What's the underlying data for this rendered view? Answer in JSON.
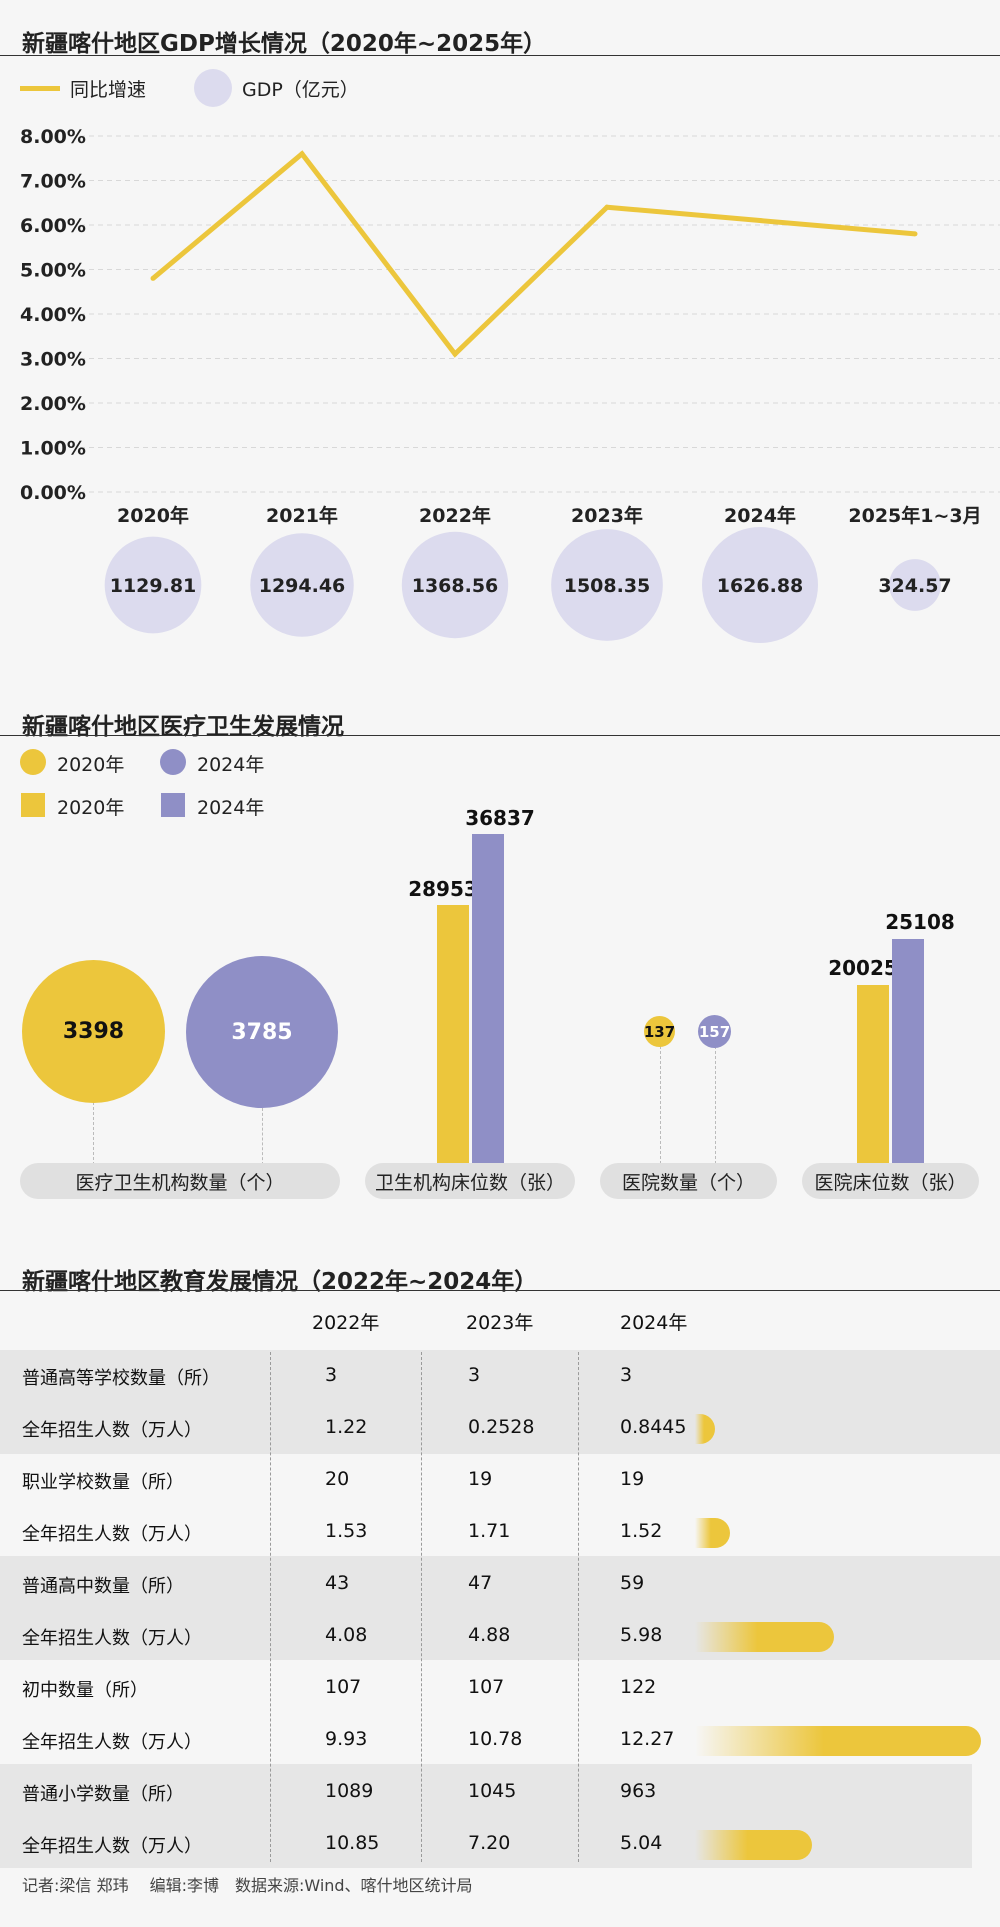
{
  "gdp": {
    "title": "新疆喀什地区GDP增长情况（2020年~2025年）",
    "legend_line": "同比增速",
    "legend_circle": "GDP（亿元）",
    "colors": {
      "line": "#ecc63c",
      "circle": "#dcdbee"
    }
  },
  "health": {
    "title": "新疆喀什地区医疗卫生发展情况",
    "legend": [
      "2020年",
      "2024年",
      "2020年",
      "2024年"
    ],
    "colors": {
      "y2020": "#ecc63c",
      "y2024": "#8f8fc6"
    },
    "groups": [
      "医疗卫生机构数量（个）",
      "卫生机构床位数（张）",
      "医院数量（个）",
      "医院床位数（张）"
    ]
  },
  "edu": {
    "title": "新疆喀什地区教育发展情况（2022年~2024年）",
    "years": [
      "2022年",
      "2023年",
      "2024年"
    ],
    "rows": [
      {
        "label": "普通高等学校数量（所）",
        "values": [
          "3",
          "3",
          "3"
        ]
      },
      {
        "label": "全年招生人数（万人）",
        "values": [
          "1.22",
          "0.2528",
          "0.8445"
        ],
        "level": 0.8445
      },
      {
        "label": "职业学校数量（所）",
        "values": [
          "20",
          "19",
          "19"
        ]
      },
      {
        "label": "全年招生人数（万人）",
        "values": [
          "1.53",
          "1.71",
          "1.52"
        ],
        "level": 1.52
      },
      {
        "label": "普通高中数量（所）",
        "values": [
          "43",
          "47",
          "59"
        ]
      },
      {
        "label": "全年招生人数（万人）",
        "values": [
          "4.08",
          "4.88",
          "5.98"
        ],
        "level": 5.98
      },
      {
        "label": "初中数量（所）",
        "values": [
          "107",
          "107",
          "122"
        ]
      },
      {
        "label": "全年招生人数（万人）",
        "values": [
          "9.93",
          "10.78",
          "12.27"
        ],
        "level": 12.27
      },
      {
        "label": "普通小学数量（所）",
        "values": [
          "1089",
          "1045",
          "963"
        ]
      },
      {
        "label": "全年招生人数（万人）",
        "values": [
          "10.85",
          "7.20",
          "5.04"
        ],
        "level": 5.04
      }
    ]
  },
  "footer": "记者:梁信 郑玮　 编辑:李博　数据来源:Wind、喀什地区统计局",
  "chart_data": [
    {
      "type": "line",
      "x": [
        "2020年",
        "2021年",
        "2022年",
        "2023年",
        "2024年",
        "2025年1~3月"
      ],
      "series": [
        {
          "name": "同比增速",
          "values": [
            4.8,
            7.6,
            3.1,
            6.4,
            6.1,
            5.8
          ]
        }
      ],
      "ylim": [
        0,
        8
      ],
      "yticks": [
        "8.00%",
        "7.00%",
        "6.00%",
        "5.00%",
        "4.00%",
        "3.00%",
        "2.00%",
        "1.00%",
        "0.00%"
      ],
      "grid": true
    },
    {
      "type": "scatter",
      "x": [
        "2020年",
        "2021年",
        "2022年",
        "2023年",
        "2024年",
        "2025年1~3月"
      ],
      "series": [
        {
          "name": "GDP（亿元）",
          "values": [
            1129.81,
            1294.46,
            1368.56,
            1508.35,
            1626.88,
            324.57
          ],
          "labels": [
            "1129.81",
            "1294.46",
            "1368.56",
            "1508.35",
            "1626.88",
            "324.57"
          ]
        }
      ]
    },
    {
      "type": "bar",
      "categories": [
        "医疗卫生机构数量（个）",
        "卫生机构床位数（张）",
        "医院数量（个）",
        "医院床位数（张）"
      ],
      "series": [
        {
          "name": "2020年",
          "values": [
            3398,
            28953,
            137,
            20025
          ],
          "labels": [
            "3398",
            "28953",
            "137",
            "20025"
          ]
        },
        {
          "name": "2024年",
          "values": [
            3785,
            36837,
            157,
            25108
          ],
          "labels": [
            "3785",
            "36837",
            "157",
            "25108"
          ]
        }
      ]
    }
  ]
}
